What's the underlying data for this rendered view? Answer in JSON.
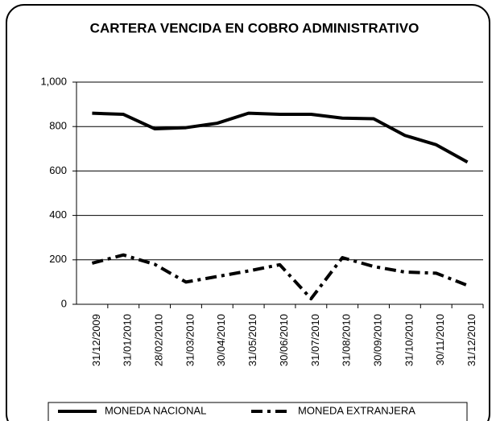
{
  "chart_data": {
    "type": "line",
    "title": "CARTERA VENCIDA EN COBRO ADMINISTRATIVO",
    "categories": [
      "31/12/2009",
      "31/01/2010",
      "28/02/2010",
      "31/03/2010",
      "30/04/2010",
      "31/05/2010",
      "30/06/2010",
      "31/07/2010",
      "31/08/2010",
      "30/09/2010",
      "31/10/2010",
      "30/11/2010",
      "31/12/2010"
    ],
    "series": [
      {
        "name": "MONEDA NACIONAL",
        "color": "#000000",
        "dash": "solid",
        "values": [
          860,
          855,
          790,
          795,
          815,
          860,
          855,
          855,
          838,
          835,
          760,
          718,
          640
        ]
      },
      {
        "name": "MONEDA EXTRANJERA",
        "color": "#000000",
        "dash": "dashdot",
        "values": [
          185,
          222,
          180,
          100,
          125,
          150,
          178,
          25,
          210,
          170,
          145,
          140,
          85
        ]
      }
    ],
    "ylim": [
      0,
      1000
    ],
    "yticks": [
      0,
      200,
      400,
      600,
      800,
      {
        "value": 1000,
        "label": "1,000"
      }
    ],
    "grid": true,
    "legend": "bottom"
  }
}
